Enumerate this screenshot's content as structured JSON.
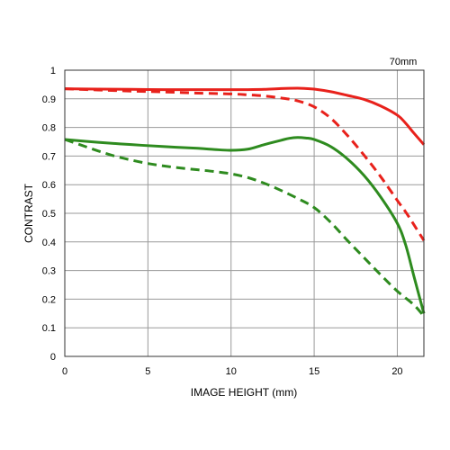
{
  "chart_data": {
    "type": "line",
    "title": "",
    "xlabel": "IMAGE HEIGHT (mm)",
    "ylabel": "CONTRAST",
    "annotation": "70mm",
    "xlim": [
      0,
      21.6
    ],
    "ylim": [
      0,
      1
    ],
    "x_ticks": [
      "0",
      "5",
      "10",
      "15",
      "20"
    ],
    "y_ticks": [
      "0",
      "0.1",
      "0.2",
      "0.3",
      "0.4",
      "0.5",
      "0.6",
      "0.7",
      "0.8",
      "0.9",
      "1"
    ],
    "grid": true,
    "series": [
      {
        "color": "#e8211b",
        "style": "solid",
        "x": [
          0,
          2,
          4,
          6,
          8,
          10,
          11,
          12,
          13,
          14,
          14.5,
          15,
          16,
          17,
          18,
          19,
          20,
          20.5,
          21,
          21.6
        ],
        "y": [
          0.935,
          0.934,
          0.933,
          0.932,
          0.932,
          0.932,
          0.932,
          0.933,
          0.936,
          0.937,
          0.936,
          0.934,
          0.925,
          0.912,
          0.898,
          0.875,
          0.843,
          0.815,
          0.78,
          0.74
        ]
      },
      {
        "color": "#e8211b",
        "style": "dashed",
        "x": [
          0,
          2,
          4,
          6,
          8,
          10,
          11,
          12,
          13,
          14,
          15,
          16,
          17,
          18,
          19,
          20,
          20.5,
          21,
          21.6
        ],
        "y": [
          0.935,
          0.931,
          0.927,
          0.924,
          0.92,
          0.917,
          0.914,
          0.91,
          0.903,
          0.893,
          0.872,
          0.832,
          0.772,
          0.703,
          0.628,
          0.545,
          0.505,
          0.46,
          0.405
        ]
      },
      {
        "color": "#2e8b1f",
        "style": "solid",
        "x": [
          0,
          2,
          4,
          6,
          8,
          9,
          10,
          11,
          12,
          13,
          13.5,
          14,
          14.5,
          15,
          16,
          17,
          18,
          19,
          20,
          20.5,
          21,
          21.6
        ],
        "y": [
          0.758,
          0.748,
          0.74,
          0.733,
          0.727,
          0.723,
          0.72,
          0.724,
          0.74,
          0.755,
          0.762,
          0.765,
          0.763,
          0.758,
          0.733,
          0.69,
          0.632,
          0.557,
          0.465,
          0.39,
          0.28,
          0.15
        ]
      },
      {
        "color": "#2e8b1f",
        "style": "dashed",
        "x": [
          0,
          1,
          2,
          3,
          4,
          5,
          6,
          7,
          8,
          9,
          10,
          11,
          12,
          13,
          14,
          15,
          16,
          17,
          18,
          19,
          20,
          21,
          21.6
        ],
        "y": [
          0.758,
          0.738,
          0.718,
          0.7,
          0.686,
          0.674,
          0.665,
          0.658,
          0.652,
          0.646,
          0.638,
          0.625,
          0.605,
          0.58,
          0.552,
          0.52,
          0.468,
          0.405,
          0.345,
          0.285,
          0.228,
          0.18,
          0.14
        ]
      }
    ]
  }
}
